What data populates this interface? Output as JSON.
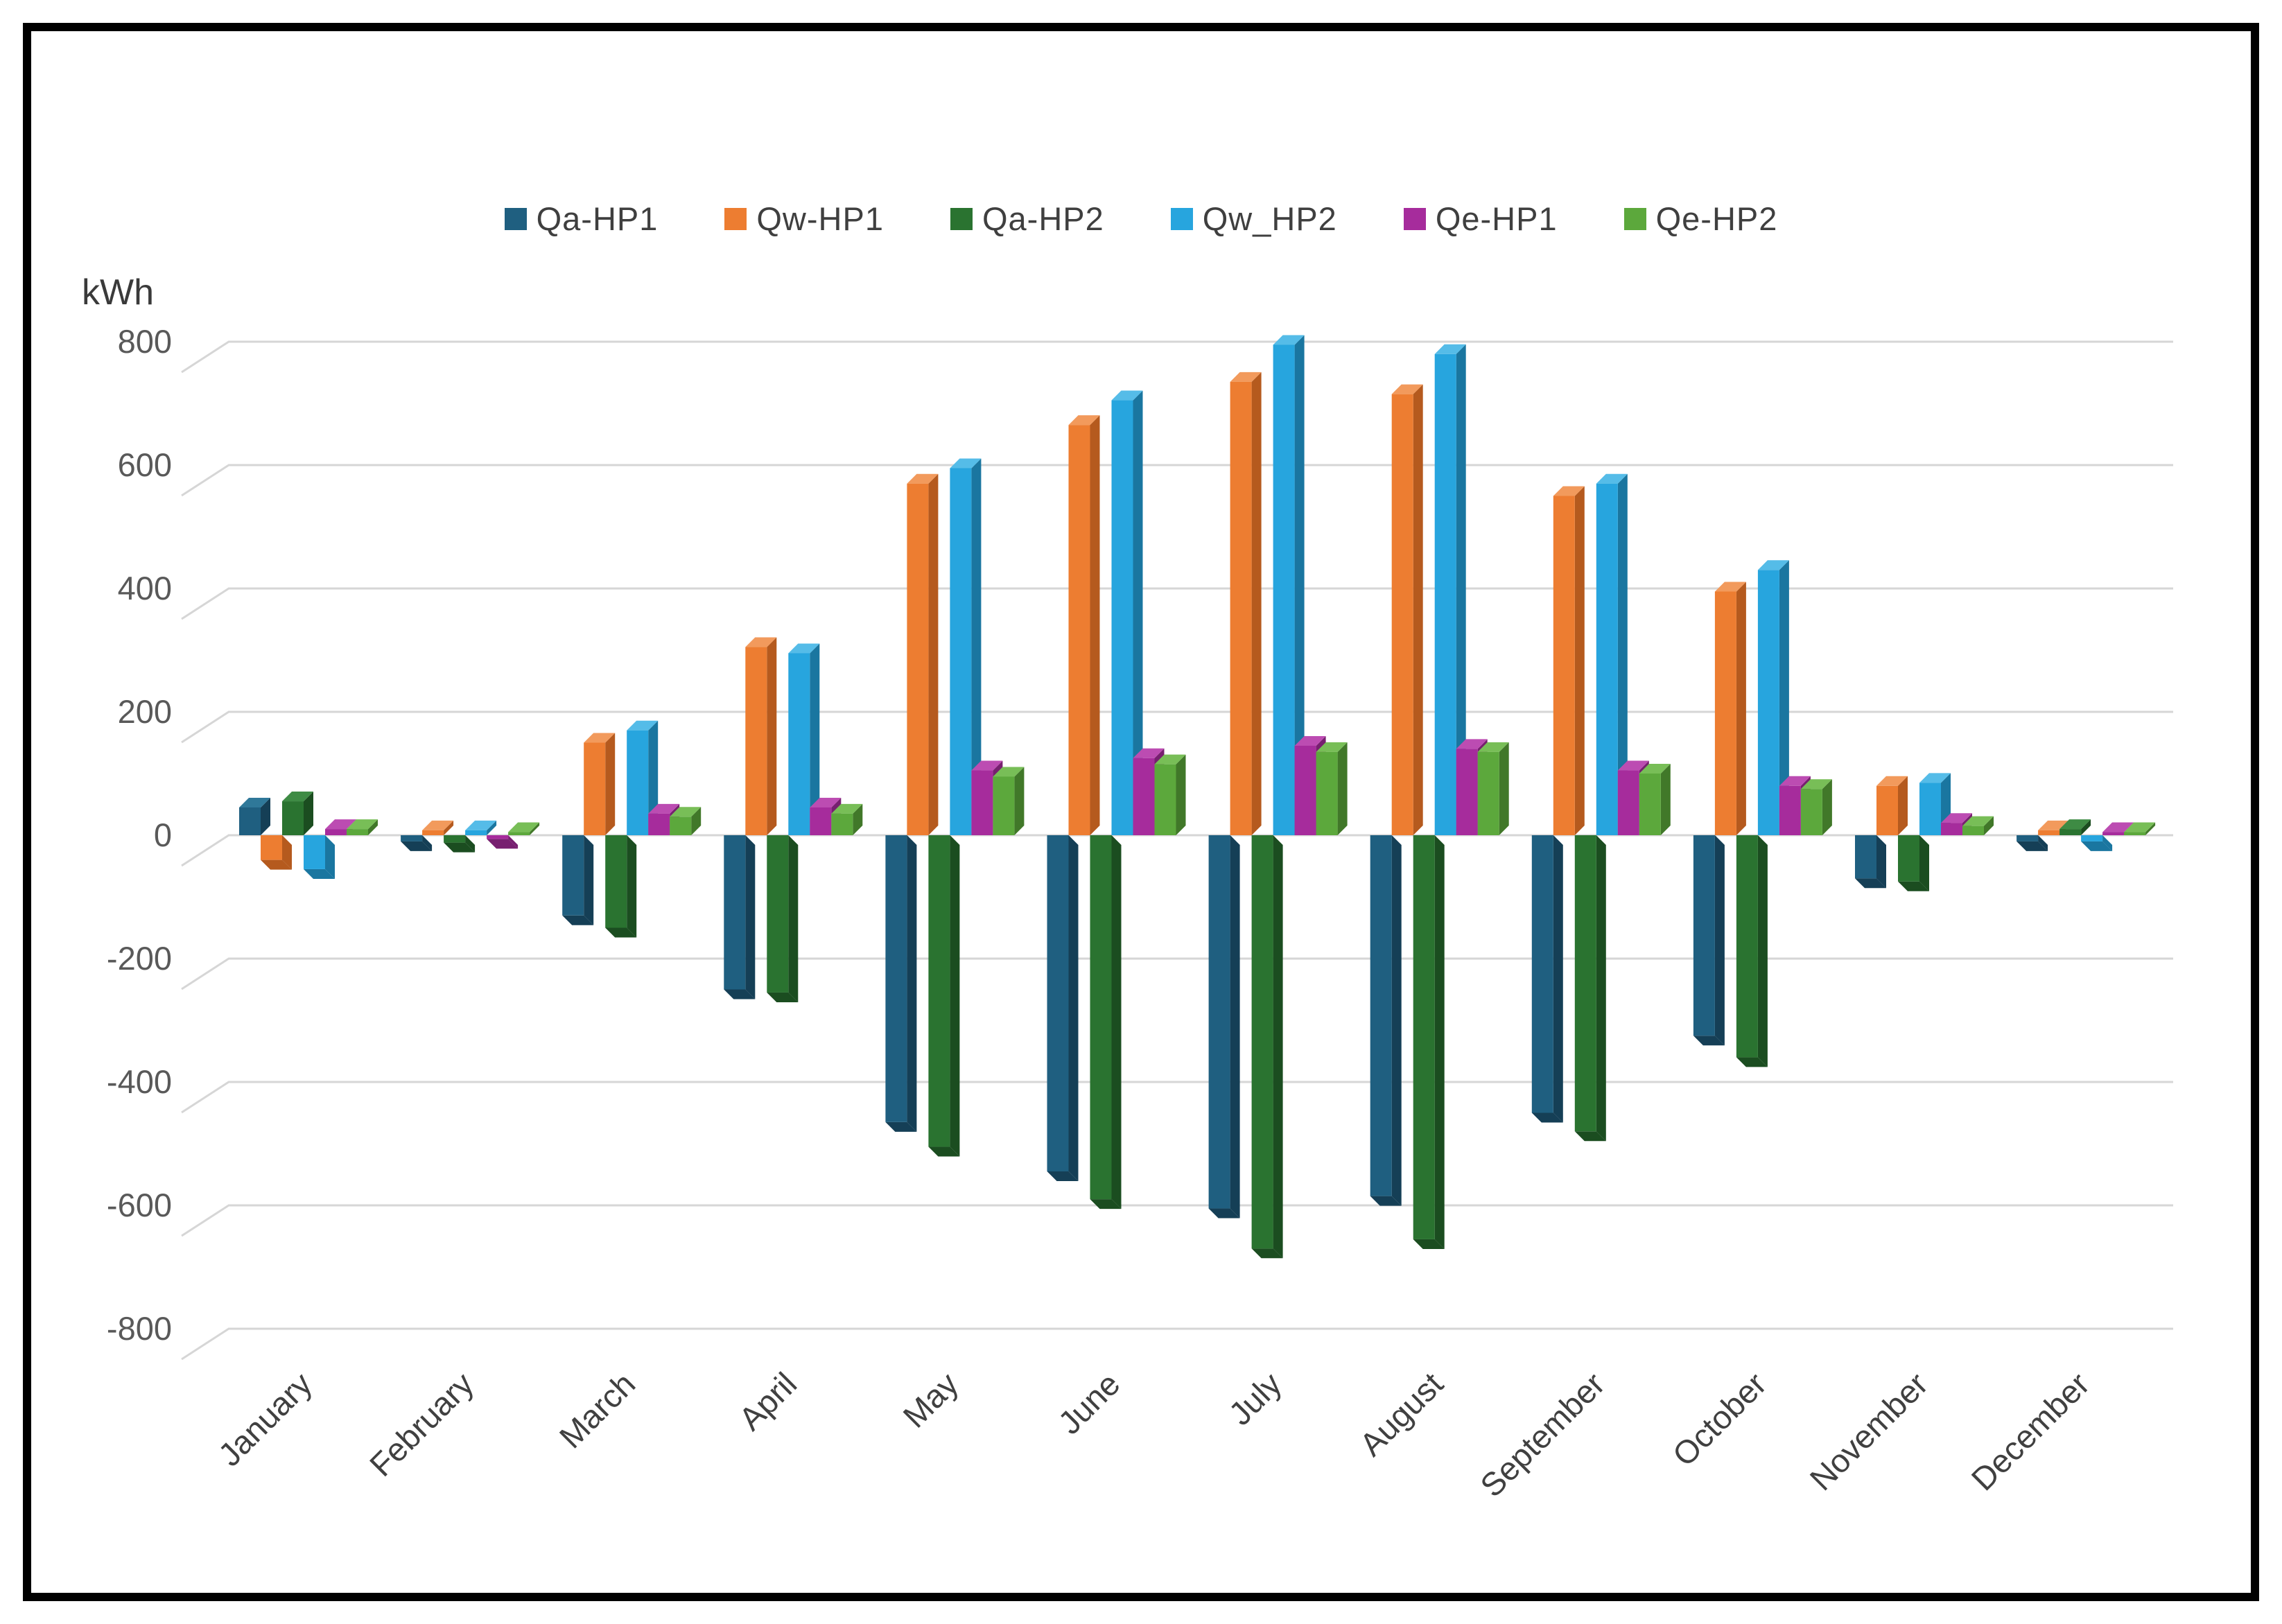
{
  "page": {
    "background": "#ffffff",
    "frame_border_color": "#000000"
  },
  "chart_data": {
    "type": "bar",
    "style": "3d-clustered-column",
    "unit_label": "kWh",
    "ylabel": "kWh",
    "ylim": [
      -800,
      800
    ],
    "y_tick_step": 200,
    "y_ticks": [
      800,
      600,
      400,
      200,
      0,
      -200,
      -400,
      -600,
      -800
    ],
    "grid": "horizontal",
    "legend_position": "top",
    "colors": {
      "grid": "#d6d6d6",
      "tick_text": "#595959",
      "month_text": "#404040",
      "legend_text": "#3f3f3f"
    },
    "categories": [
      "January",
      "February",
      "March",
      "April",
      "May",
      "June",
      "July",
      "August",
      "September",
      "October",
      "November",
      "December"
    ],
    "series": [
      {
        "name": "Qa-HP1",
        "color": {
          "front": "#1f5f80",
          "side": "#153f56",
          "top": "#2f7899"
        },
        "values": [
          45,
          -10,
          -130,
          -250,
          -465,
          -545,
          -605,
          -585,
          -450,
          -325,
          -70,
          -10
        ]
      },
      {
        "name": "Qw-HP1",
        "color": {
          "front": "#ed7d31",
          "side": "#b55a1e",
          "top": "#f29a5c"
        },
        "values": [
          -40,
          8,
          150,
          305,
          570,
          665,
          735,
          715,
          550,
          395,
          80,
          8
        ]
      },
      {
        "name": "Qa-HP2",
        "color": {
          "front": "#2a7330",
          "side": "#1b4d20",
          "top": "#3e8b44"
        },
        "values": [
          55,
          -12,
          -150,
          -255,
          -505,
          -590,
          -670,
          -655,
          -480,
          -360,
          -75,
          10
        ]
      },
      {
        "name": "Qw_HP2",
        "color": {
          "front": "#27a5de",
          "side": "#1a76a0",
          "top": "#55bce8"
        },
        "values": [
          -55,
          8,
          170,
          295,
          595,
          705,
          795,
          780,
          570,
          430,
          85,
          -10
        ]
      },
      {
        "name": "Qe-HP1",
        "color": {
          "front": "#a62c9c",
          "side": "#771f70",
          "top": "#bc4cb2"
        },
        "values": [
          10,
          -6,
          35,
          45,
          105,
          125,
          145,
          140,
          105,
          80,
          20,
          5
        ]
      },
      {
        "name": "Qe-HP2",
        "color": {
          "front": "#5ca83c",
          "side": "#417829",
          "top": "#78be57"
        },
        "values": [
          10,
          5,
          30,
          35,
          95,
          115,
          135,
          135,
          100,
          75,
          15,
          5
        ]
      }
    ]
  }
}
